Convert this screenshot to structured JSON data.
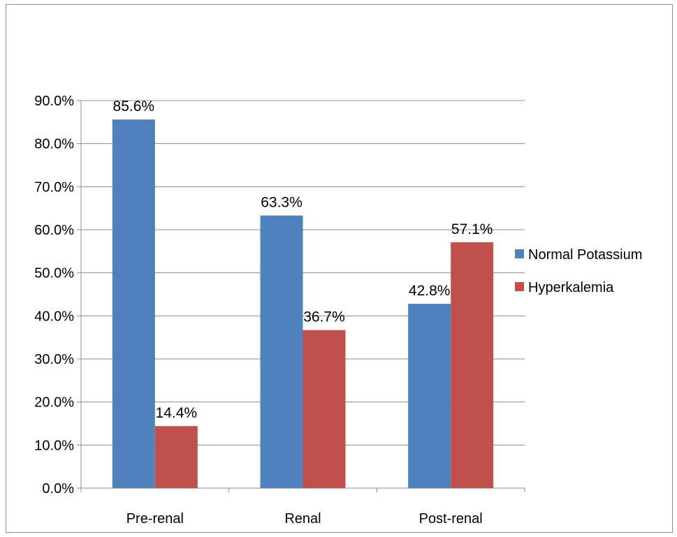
{
  "chart_data": {
    "type": "bar",
    "title": "",
    "xlabel": "",
    "ylabel": "",
    "ylim": [
      0,
      90
    ],
    "y_ticks": [
      "0.0%",
      "10.0%",
      "20.0%",
      "30.0%",
      "40.0%",
      "50.0%",
      "60.0%",
      "70.0%",
      "80.0%",
      "90.0%"
    ],
    "grid": true,
    "legend_position": "right",
    "categories": [
      "Pre-renal",
      "Renal",
      "Post-renal"
    ],
    "series": [
      {
        "name": "Normal Potassium",
        "color": "#4f81bd",
        "values": [
          85.6,
          63.3,
          42.8
        ],
        "labels": [
          "85.6%",
          "63.3%",
          "42.8%"
        ]
      },
      {
        "name": "Hyperkalemia",
        "color": "#c0504d",
        "values": [
          14.4,
          36.7,
          57.1
        ],
        "labels": [
          "14.4%",
          "36.7%",
          "57.1%"
        ]
      }
    ]
  }
}
